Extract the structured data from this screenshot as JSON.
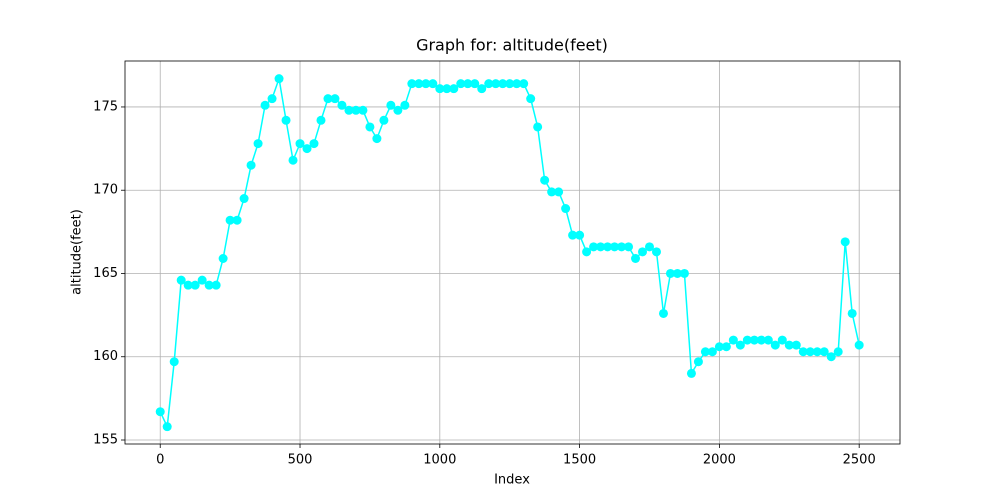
{
  "chart_data": {
    "type": "line",
    "title": "Graph for: altitude(feet)",
    "x_label": "Index",
    "y_label": "altitude(feet)",
    "x": [
      0,
      25,
      50,
      75,
      100,
      125,
      150,
      175,
      200,
      225,
      250,
      275,
      300,
      325,
      350,
      375,
      400,
      425,
      450,
      475,
      500,
      525,
      550,
      575,
      600,
      625,
      650,
      675,
      700,
      725,
      750,
      775,
      800,
      825,
      850,
      875,
      900,
      925,
      950,
      975,
      1000,
      1025,
      1050,
      1075,
      1100,
      1125,
      1150,
      1175,
      1200,
      1225,
      1250,
      1275,
      1300,
      1325,
      1350,
      1375,
      1400,
      1425,
      1450,
      1475,
      1500,
      1525,
      1550,
      1575,
      1600,
      1625,
      1650,
      1675,
      1700,
      1725,
      1750,
      1775,
      1800,
      1825,
      1850,
      1875,
      1900,
      1925,
      1950,
      1975,
      2000,
      2025,
      2050,
      2075,
      2100,
      2125,
      2150,
      2175,
      2200,
      2225,
      2250,
      2275,
      2300,
      2325,
      2350,
      2375,
      2400,
      2425,
      2450,
      2475,
      2500
    ],
    "series": [
      {
        "name": "altitude(feet)",
        "color": "#00ffff",
        "values": [
          156.7,
          155.8,
          159.7,
          164.6,
          164.3,
          164.3,
          164.6,
          164.3,
          164.3,
          165.9,
          168.2,
          168.2,
          169.5,
          171.5,
          172.8,
          175.1,
          175.5,
          176.7,
          174.2,
          171.8,
          172.8,
          172.5,
          172.8,
          174.2,
          175.5,
          175.5,
          175.1,
          174.8,
          174.8,
          174.8,
          173.8,
          173.1,
          174.2,
          175.1,
          174.8,
          175.1,
          176.4,
          176.4,
          176.4,
          176.4,
          176.1,
          176.1,
          176.1,
          176.4,
          176.4,
          176.4,
          176.1,
          176.4,
          176.4,
          176.4,
          176.4,
          176.4,
          176.4,
          175.5,
          173.8,
          170.6,
          169.9,
          169.9,
          168.9,
          167.3,
          167.3,
          166.3,
          166.6,
          166.6,
          166.6,
          166.6,
          166.6,
          166.6,
          165.9,
          166.3,
          166.6,
          166.3,
          162.6,
          165.0,
          165.0,
          165.0,
          159.0,
          159.7,
          160.3,
          160.3,
          160.6,
          160.6,
          161.0,
          160.7,
          161.0,
          161.0,
          161.0,
          161.0,
          160.7,
          161.0,
          160.7,
          160.7,
          160.3,
          160.3,
          160.3,
          160.3,
          160.0,
          160.3,
          166.9,
          162.6,
          160.7
        ]
      }
    ],
    "xlim": [
      -126,
      2646
    ],
    "ylim": [
      154.76,
      177.76
    ],
    "xticks": [
      0,
      500,
      1000,
      1500,
      2000,
      2500
    ],
    "yticks": [
      155,
      160,
      165,
      170,
      175
    ],
    "grid": true
  }
}
